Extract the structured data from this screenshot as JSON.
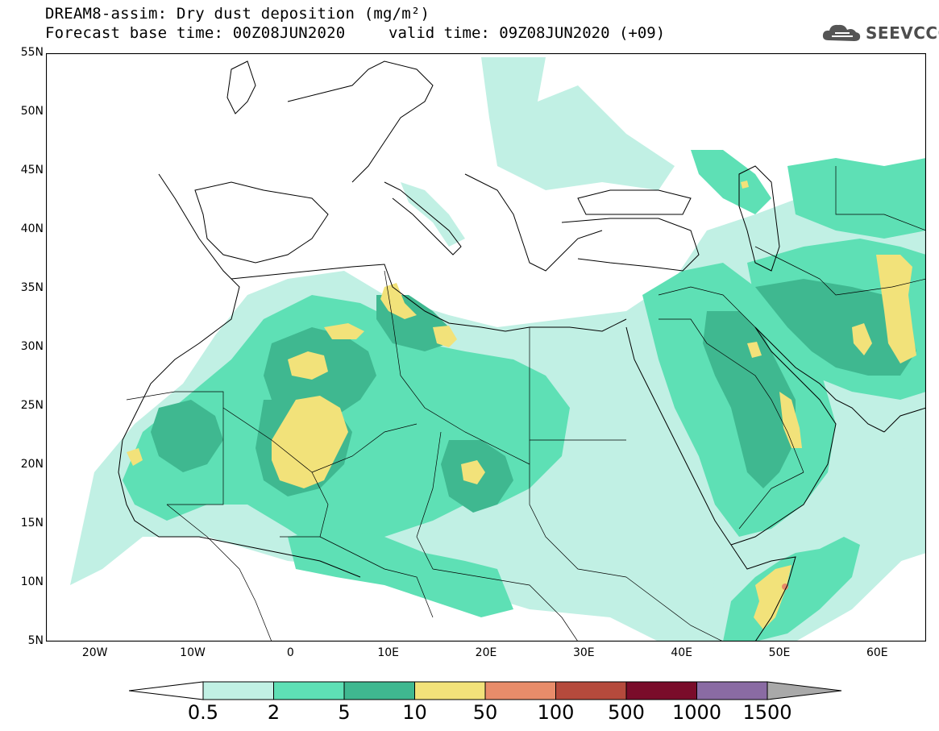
{
  "header": {
    "title_line1": "DREAM8-assim: Dry dust deposition (mg/m²)",
    "title_line2": "Forecast base time: 00Z08JUN2020",
    "valid_time": "valid time: 09Z08JUN2020 (+09)",
    "logo_text": "SEEVCCC",
    "logo_icon": "cloud-icon"
  },
  "map": {
    "lat_labels": [
      "55N",
      "50N",
      "45N",
      "40N",
      "35N",
      "30N",
      "25N",
      "20N",
      "15N",
      "10N",
      "5N"
    ],
    "lon_labels": [
      "20W",
      "10W",
      "0",
      "10E",
      "20E",
      "30E",
      "40E",
      "50E",
      "60E"
    ],
    "lon_range": [
      -25,
      65
    ],
    "lat_range": [
      5,
      55
    ],
    "ocean_color": "#ffffff",
    "land_color": "#ffffff"
  },
  "legend": {
    "labels": [
      "0.5",
      "2",
      "5",
      "10",
      "50",
      "100",
      "500",
      "1000",
      "1500"
    ],
    "colors": [
      "#c1f0e4",
      "#5ee0b5",
      "#3fb890",
      "#f2e27a",
      "#e88c6a",
      "#b54a3c",
      "#7a0c2a",
      "#8a6ba3"
    ],
    "extend_low_color": "#ffffff",
    "extend_high_color": "#a9a9a9"
  }
}
